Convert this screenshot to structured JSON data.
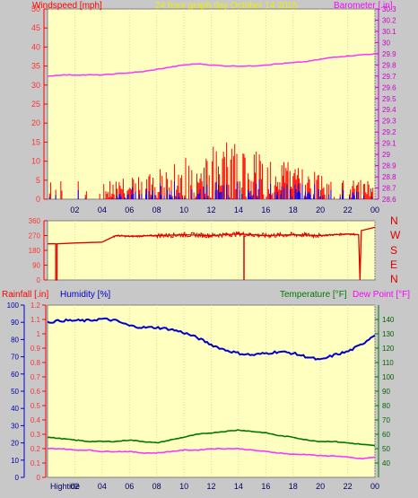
{
  "header": {
    "left_label": "Windspeed [mph]",
    "center_label": "24 hour graph day   October 14 2015",
    "right_label": "Barometer [.in]"
  },
  "compass": [
    "N",
    "W",
    "S",
    "E",
    "N"
  ],
  "footer_labels": {
    "rain_label": "Rainfall [.in]",
    "humidity_label": "Humidity [%]",
    "temperature_label": "Temperature [°F]",
    "dewpoint_label": "Dew Point [°F]",
    "hightide": "Hightide"
  },
  "colors": {
    "plot_bg": "#ffffc0",
    "wind": "#ff0000",
    "gust": "#0000ff",
    "barometer": "#ff33ff",
    "direction": "#dd0000",
    "humidity": "#0000cc",
    "temperature": "#007700",
    "dewpoint": "#ff33ff",
    "sun_labels": "#ffee00"
  },
  "chart_data": [
    {
      "type": "line",
      "name": "wind-barometer",
      "x_ticks": [
        "02",
        "04",
        "06",
        "08",
        "10",
        "12",
        "14",
        "16",
        "18",
        "20",
        "22",
        "00"
      ],
      "ylim_left": [
        0,
        50
      ],
      "yticks_left": [
        0,
        5,
        10,
        15,
        20,
        25,
        30,
        35,
        40,
        45,
        50
      ],
      "ylim_right": [
        28.6,
        30.3
      ],
      "yticks_right": [
        "28.6",
        "28.7",
        "28.8",
        "28.9",
        "29",
        "29.1",
        "29.2",
        "29.3",
        "29.4",
        "29.5",
        "29.6",
        "29.7",
        "29.8",
        "29.9",
        "30",
        "30.1",
        "30.2",
        "30.3"
      ],
      "barometer_series": {
        "x_hours": [
          0,
          1,
          2,
          3,
          4,
          5,
          6,
          7,
          8,
          9,
          10,
          11,
          12,
          13,
          14,
          15,
          16,
          17,
          18,
          19,
          20,
          21,
          22,
          23,
          24
        ],
        "values": [
          29.7,
          29.71,
          29.71,
          29.71,
          29.71,
          29.72,
          29.73,
          29.74,
          29.76,
          29.78,
          29.8,
          29.81,
          29.8,
          29.79,
          29.79,
          29.79,
          29.8,
          29.81,
          29.82,
          29.83,
          29.85,
          29.87,
          29.88,
          29.89,
          29.9
        ]
      },
      "wind_peak_max": 15,
      "gust_peak_max": 6
    },
    {
      "type": "line",
      "name": "wind-direction",
      "ylim": [
        0,
        360
      ],
      "yticks": [
        0,
        90,
        180,
        270,
        360
      ],
      "series": {
        "x_hours": [
          0,
          0.6,
          0.6,
          0.7,
          0.7,
          2,
          4,
          5,
          6,
          8,
          10,
          12,
          14,
          16,
          18,
          20,
          22,
          22.8,
          22.9,
          23,
          24
        ],
        "values": [
          220,
          220,
          0,
          0,
          220,
          225,
          230,
          270,
          265,
          270,
          275,
          270,
          280,
          270,
          275,
          270,
          280,
          275,
          0,
          300,
          320
        ]
      }
    },
    {
      "type": "line",
      "name": "humidity-temperature",
      "ylim_rain": [
        0,
        1.2
      ],
      "yticks_rain": [
        "0",
        "0.1",
        "0.2",
        "0.3",
        "0.4",
        "0.5",
        "0.6",
        "0.7",
        "0.8",
        "0.9",
        "1",
        "1.1",
        "1.2"
      ],
      "ylim_humidity": [
        0,
        100
      ],
      "yticks_humidity": [
        0,
        10,
        20,
        30,
        40,
        50,
        60,
        70,
        80,
        90,
        100
      ],
      "ylim_temp": [
        30,
        150
      ],
      "yticks_temp": [
        40,
        50,
        60,
        70,
        80,
        90,
        100,
        110,
        120,
        130,
        140
      ],
      "x_hours": [
        0,
        1,
        2,
        3,
        4,
        5,
        6,
        7,
        8,
        9,
        10,
        11,
        12,
        13,
        14,
        15,
        16,
        17,
        18,
        19,
        20,
        21,
        22,
        23,
        24
      ],
      "humidity": [
        90,
        91,
        91,
        91,
        92,
        91,
        88,
        87,
        87,
        86,
        84,
        81,
        77,
        74,
        72,
        71,
        72,
        73,
        72,
        70,
        68,
        71,
        73,
        77,
        83
      ],
      "temperature": [
        58,
        57,
        56,
        55,
        55,
        55,
        56,
        55,
        54,
        56,
        58,
        60,
        61,
        62,
        63,
        62,
        61,
        59,
        58,
        56,
        55,
        55,
        54,
        53,
        52
      ],
      "dewpoint": [
        50,
        50,
        49,
        49,
        48,
        48,
        48,
        47,
        47,
        48,
        49,
        49,
        50,
        50,
        50,
        49,
        48,
        47,
        46,
        46,
        45,
        45,
        44,
        43,
        44
      ]
    }
  ]
}
